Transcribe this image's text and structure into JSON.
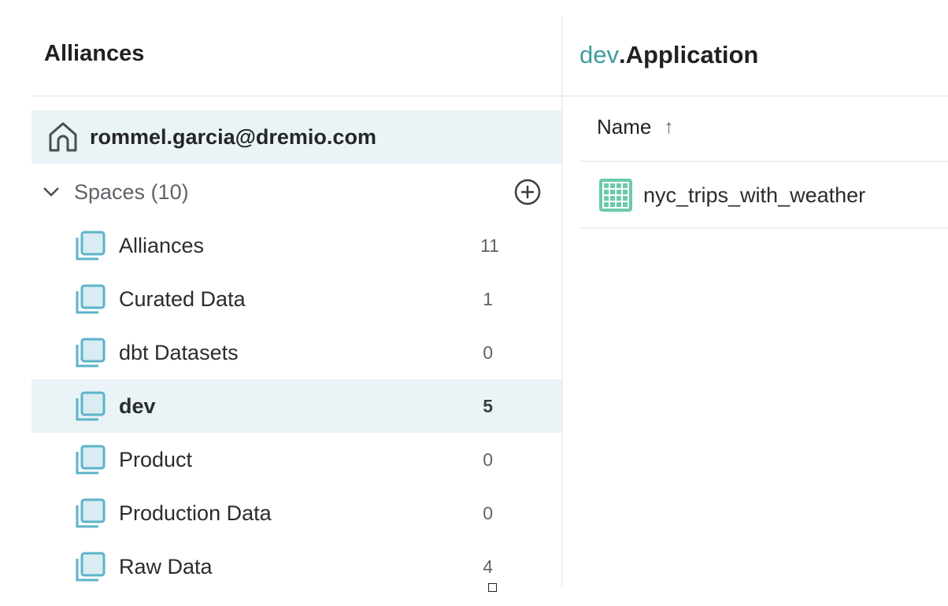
{
  "left_panel": {
    "title": "Alliances",
    "home": {
      "label": "rommel.garcia@dremio.com",
      "icon": "home-icon"
    },
    "spaces": {
      "label": "Spaces (10)",
      "expanded": true,
      "items": [
        {
          "label": "Alliances",
          "count": "11"
        },
        {
          "label": "Curated Data",
          "count": "1"
        },
        {
          "label": "dbt Datasets",
          "count": "0"
        },
        {
          "label": "dev",
          "count": "5",
          "selected": true
        },
        {
          "label": "Product",
          "count": "0"
        },
        {
          "label": "Production Data",
          "count": "0"
        },
        {
          "label": "Raw Data",
          "count": "4"
        }
      ]
    }
  },
  "right_panel": {
    "breadcrumb_space": "dev",
    "breadcrumb_folder": ".Application",
    "column_header": "Name",
    "sort": "ascending",
    "rows": [
      {
        "label": "nyc_trips_with_weather",
        "icon": "table-dataset-icon"
      }
    ]
  },
  "colors": {
    "accent": "#3e9ba0",
    "selected_bg": "#eaf3f6",
    "space_icon": "#5cb3c9",
    "dataset_icon": "#6ccaa8"
  }
}
